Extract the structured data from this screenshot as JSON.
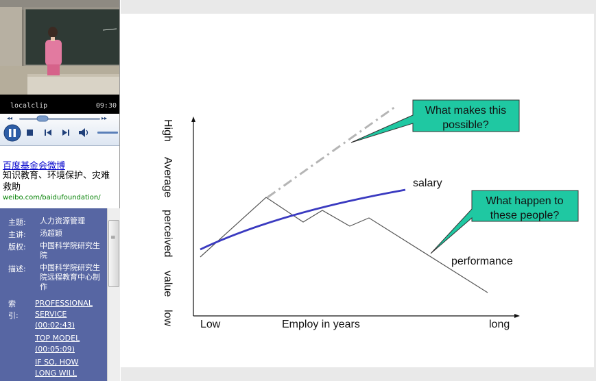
{
  "player": {
    "clip_title": "localclip",
    "clip_time": "09:30",
    "progress_fraction": 0.3
  },
  "weibo": {
    "title": "百度基金会微博",
    "desc": "知识教育、环境保护、灾难救助",
    "url": "weibo.com/baidufoundation/"
  },
  "info": {
    "rows": [
      {
        "key": "主题:",
        "value": "人力资源管理"
      },
      {
        "key": "主讲:",
        "value": "汤超颖"
      },
      {
        "key": "版权:",
        "value": "中国科学院研究生院"
      },
      {
        "key": "描述:",
        "value": "中国科学院研究生院远程教育中心制作"
      }
    ],
    "index_key_1": "索",
    "index_key_2": "引:",
    "index_items": [
      "PROFESSIONAL SERVICE (00:02:43)",
      "TOP MODEL (00:05:09)",
      "IF SO, HOW LONG WILL"
    ]
  },
  "slide": {
    "y_labels": [
      "High",
      "Average",
      "perceived",
      "value",
      "low"
    ],
    "x_labels": [
      "Low",
      "Employ in years",
      "long"
    ],
    "series": [
      {
        "name": "salary",
        "color": "#3a3ac0"
      },
      {
        "name": "performance",
        "color": "#555555"
      }
    ],
    "callouts": [
      {
        "text_line1": "What makes this",
        "text_line2": "possible?"
      },
      {
        "text_line1": "What happen to",
        "text_line2": "these people?"
      }
    ],
    "callout_color": "#1fc8a2"
  },
  "colors": {
    "info_panel": "#5766a3",
    "link": "#0000cc",
    "url": "#008000"
  }
}
